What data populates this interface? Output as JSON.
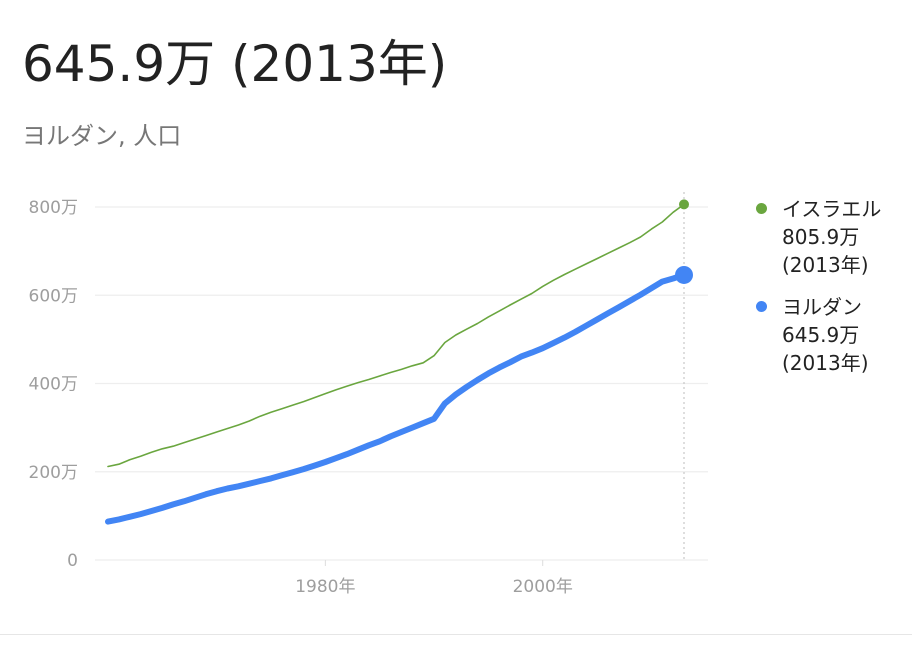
{
  "header": {
    "value": "645.9万",
    "year_suffix": "(2013年)",
    "subtitle": "ヨルダン, 人口"
  },
  "colors": {
    "israel": "#6aa63f",
    "jordan": "#4285f4",
    "grid": "#eeeeee",
    "axis_label": "#9e9e9e"
  },
  "legend": [
    {
      "name": "イスラエル",
      "value": "805.9万",
      "year": "(2013年)",
      "color": "#6aa63f"
    },
    {
      "name": "ヨルダン",
      "value": "645.9万",
      "year": "(2013年)",
      "color": "#4285f4"
    }
  ],
  "chart_data": {
    "type": "line",
    "y_ticks": [
      {
        "value": 0,
        "label": "0"
      },
      {
        "value": 200,
        "label": "200万"
      },
      {
        "value": 400,
        "label": "400万"
      },
      {
        "value": 600,
        "label": "600万"
      },
      {
        "value": 800,
        "label": "800万"
      }
    ],
    "x_ticks": [
      {
        "value": 1980,
        "label": "1980年"
      },
      {
        "value": 2000,
        "label": "2000年"
      }
    ],
    "xlim": [
      1960,
      2013
    ],
    "ylim": [
      0,
      800
    ],
    "grid": true,
    "legend_position": "right",
    "series": [
      {
        "name": "イスラエル",
        "color": "#6aa63f",
        "x": [
          1960,
          1961,
          1962,
          1963,
          1964,
          1965,
          1966,
          1967,
          1968,
          1969,
          1970,
          1971,
          1972,
          1973,
          1974,
          1975,
          1976,
          1977,
          1978,
          1979,
          1980,
          1981,
          1982,
          1983,
          1984,
          1985,
          1986,
          1987,
          1988,
          1989,
          1990,
          1991,
          1992,
          1993,
          1994,
          1995,
          1996,
          1997,
          1998,
          1999,
          2000,
          2001,
          2002,
          2003,
          2004,
          2005,
          2006,
          2007,
          2008,
          2009,
          2010,
          2011,
          2012,
          2013
        ],
        "y": [
          212,
          217,
          227,
          235,
          244,
          252,
          258,
          266,
          274,
          282,
          290,
          298,
          306,
          315,
          326,
          335,
          343,
          351,
          359,
          368,
          377,
          386,
          394,
          402,
          409,
          417,
          425,
          432,
          440,
          447,
          463,
          493,
          510,
          523,
          536,
          551,
          564,
          578,
          591,
          604,
          620,
          634,
          647,
          659,
          671,
          683,
          695,
          707,
          719,
          732,
          750,
          766,
          788,
          806
        ]
      },
      {
        "name": "ヨルダン",
        "color": "#4285f4",
        "x": [
          1960,
          1961,
          1962,
          1963,
          1964,
          1965,
          1966,
          1967,
          1968,
          1969,
          1970,
          1971,
          1972,
          1973,
          1974,
          1975,
          1976,
          1977,
          1978,
          1979,
          1980,
          1981,
          1982,
          1983,
          1984,
          1985,
          1986,
          1987,
          1988,
          1989,
          1990,
          1991,
          1992,
          1993,
          1994,
          1995,
          1996,
          1997,
          1998,
          1999,
          2000,
          2001,
          2002,
          2003,
          2004,
          2005,
          2006,
          2007,
          2008,
          2009,
          2010,
          2011,
          2012,
          2013
        ],
        "y": [
          87,
          92,
          98,
          104,
          111,
          118,
          126,
          133,
          141,
          149,
          156,
          162,
          167,
          173,
          179,
          185,
          192,
          199,
          206,
          214,
          222,
          231,
          240,
          250,
          260,
          269,
          280,
          290,
          300,
          310,
          320,
          355,
          375,
          392,
          408,
          423,
          436,
          448,
          461,
          470,
          480,
          492,
          504,
          517,
          531,
          545,
          559,
          573,
          587,
          601,
          616,
          631,
          638,
          646
        ]
      }
    ],
    "markers": [
      {
        "series": "イスラエル",
        "x": 2013,
        "y": 806
      },
      {
        "series": "ヨルダン",
        "x": 2013,
        "y": 646
      }
    ]
  }
}
